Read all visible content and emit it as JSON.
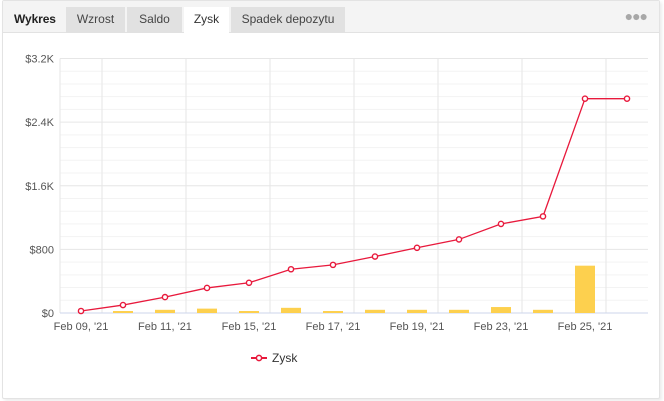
{
  "header": {
    "title": "Wykres",
    "tabs": [
      {
        "label": "Wzrost",
        "active": false
      },
      {
        "label": "Saldo",
        "active": false
      },
      {
        "label": "Zysk",
        "active": true
      },
      {
        "label": "Spadek depozytu",
        "active": false
      }
    ],
    "more_icon": "ellipsis-icon"
  },
  "colors": {
    "line": "#e8193c",
    "bar": "#fdd04e",
    "grid": "#e8e8e8",
    "axis": "#ccd6eb"
  },
  "chart_data": {
    "type": "line",
    "title": "",
    "xlabel": "",
    "ylabel": "",
    "ylim": [
      0,
      3200
    ],
    "y_ticks": [
      "$0",
      "$800",
      "$1.6K",
      "$2.4K",
      "$3.2K"
    ],
    "x_tick_labels": [
      "Feb 09, '21",
      "Feb 11, '21",
      "Feb 15, '21",
      "Feb 17, '21",
      "Feb 19, '21",
      "Feb 23, '21",
      "Feb 25, '21"
    ],
    "x_tick_positions": [
      0,
      2,
      4,
      6,
      8,
      10,
      12
    ],
    "num_points": 14,
    "grid": true,
    "legend_position": "bottom",
    "series": [
      {
        "name": "Zysk",
        "type": "line",
        "values": [
          25,
          100,
          200,
          315,
          380,
          550,
          605,
          710,
          820,
          925,
          1120,
          1215,
          2695,
          2695
        ]
      },
      {
        "name": "",
        "type": "bar",
        "values": [
          0,
          25,
          40,
          55,
          25,
          65,
          25,
          40,
          40,
          40,
          75,
          40,
          595,
          0
        ]
      }
    ]
  },
  "legend": {
    "items": [
      {
        "label": "Zysk"
      }
    ]
  }
}
